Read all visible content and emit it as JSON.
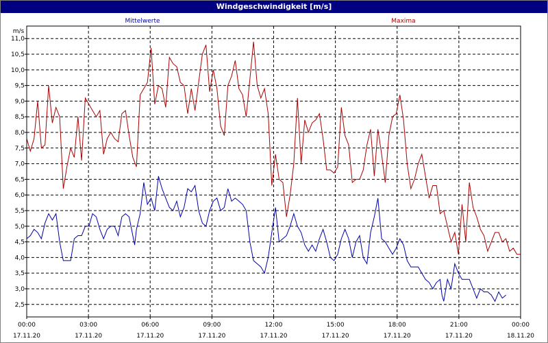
{
  "window": {
    "title": "Windgeschwindigkeit [m/s]"
  },
  "chart_data": {
    "type": "line",
    "title": "Windgeschwindigkeit [m/s]",
    "ylabel": "m/s",
    "ylim": [
      2.1,
      11.4
    ],
    "yticks": [
      "2,5",
      "3,0",
      "3,5",
      "4,0",
      "4,5",
      "5,0",
      "5,5",
      "6,0",
      "6,5",
      "7,0",
      "7,5",
      "8,0",
      "8,5",
      "9,0",
      "9,5",
      "10,0",
      "10,5",
      "11,0"
    ],
    "xticks": [
      {
        "time": "00:00",
        "date": "17.11.20"
      },
      {
        "time": "03:00",
        "date": "17.11.20"
      },
      {
        "time": "06:00",
        "date": "17.11.20"
      },
      {
        "time": "09:00",
        "date": "17.11.20"
      },
      {
        "time": "12:00",
        "date": "17.11.20"
      },
      {
        "time": "15:00",
        "date": "17.11.20"
      },
      {
        "time": "18:00",
        "date": "17.11.20"
      },
      {
        "time": "21:00",
        "date": "17.11.20"
      },
      {
        "time": "00:00",
        "date": "18.11.20"
      }
    ],
    "x_unit": "hours since 17.11.20 00:00",
    "grid": true,
    "series": [
      {
        "name": "Mittelwerte",
        "color": "#0000aa",
        "points": [
          [
            0,
            4.6
          ],
          [
            0.2,
            4.7
          ],
          [
            0.4,
            4.9
          ],
          [
            0.6,
            4.8
          ],
          [
            0.8,
            4.6
          ],
          [
            1.0,
            5.1
          ],
          [
            1.2,
            5.4
          ],
          [
            1.4,
            5.2
          ],
          [
            1.6,
            5.4
          ],
          [
            1.8,
            4.5
          ],
          [
            1.9,
            4.2
          ],
          [
            2.0,
            3.9
          ],
          [
            2.2,
            3.9
          ],
          [
            2.4,
            3.9
          ],
          [
            2.6,
            4.6
          ],
          [
            2.8,
            4.7
          ],
          [
            3.0,
            4.7
          ],
          [
            3.2,
            5.0
          ],
          [
            3.4,
            5.0
          ],
          [
            3.6,
            5.4
          ],
          [
            3.8,
            5.3
          ],
          [
            4.0,
            4.9
          ],
          [
            4.2,
            4.6
          ],
          [
            4.4,
            4.9
          ],
          [
            4.6,
            5.0
          ],
          [
            4.8,
            5.0
          ],
          [
            5.0,
            4.7
          ],
          [
            5.2,
            5.3
          ],
          [
            5.4,
            5.4
          ],
          [
            5.6,
            5.3
          ],
          [
            5.8,
            4.7
          ],
          [
            5.9,
            4.4
          ],
          [
            6.0,
            4.9
          ],
          [
            6.2,
            5.4
          ],
          [
            6.4,
            6.4
          ],
          [
            6.6,
            5.7
          ],
          [
            6.8,
            5.9
          ],
          [
            7.0,
            5.5
          ],
          [
            7.2,
            6.6
          ],
          [
            7.4,
            6.2
          ],
          [
            7.6,
            5.9
          ],
          [
            7.8,
            5.6
          ],
          [
            8.0,
            5.5
          ],
          [
            8.2,
            5.8
          ],
          [
            8.4,
            5.3
          ],
          [
            8.6,
            5.6
          ],
          [
            8.8,
            6.2
          ],
          [
            9.0,
            6.1
          ],
          [
            9.2,
            6.3
          ],
          [
            9.4,
            5.5
          ],
          [
            9.6,
            5.1
          ],
          [
            9.8,
            5.0
          ],
          [
            10.0,
            5.5
          ],
          [
            10.2,
            5.8
          ],
          [
            10.4,
            5.9
          ],
          [
            10.6,
            5.5
          ],
          [
            10.8,
            5.6
          ],
          [
            11.0,
            6.2
          ],
          [
            11.2,
            5.8
          ],
          [
            11.4,
            5.9
          ],
          [
            11.6,
            5.8
          ],
          [
            11.8,
            5.7
          ],
          [
            12.0,
            5.5
          ],
          [
            12.2,
            4.5
          ],
          [
            12.4,
            3.9
          ],
          [
            12.6,
            3.8
          ],
          [
            12.8,
            3.7
          ],
          [
            13.0,
            3.5
          ],
          [
            13.2,
            4.0
          ],
          [
            13.4,
            4.8
          ],
          [
            13.6,
            5.6
          ],
          [
            13.8,
            4.5
          ],
          [
            14.0,
            4.6
          ],
          [
            14.2,
            4.7
          ],
          [
            14.4,
            5.0
          ],
          [
            14.6,
            5.4
          ],
          [
            14.8,
            5.0
          ],
          [
            15.0,
            4.8
          ],
          [
            15.2,
            4.4
          ],
          [
            15.4,
            4.2
          ],
          [
            15.6,
            4.4
          ],
          [
            15.8,
            4.2
          ],
          [
            16.0,
            4.6
          ],
          [
            16.2,
            4.9
          ],
          [
            16.4,
            4.5
          ],
          [
            16.6,
            4.0
          ],
          [
            16.8,
            3.9
          ],
          [
            17.0,
            4.1
          ],
          [
            17.2,
            4.6
          ],
          [
            17.4,
            4.9
          ],
          [
            17.6,
            4.6
          ],
          [
            17.8,
            4.0
          ],
          [
            18.0,
            4.5
          ],
          [
            18.2,
            4.7
          ],
          [
            18.4,
            4.0
          ],
          [
            18.6,
            3.8
          ],
          [
            18.8,
            4.8
          ],
          [
            19.0,
            5.3
          ],
          [
            19.2,
            5.9
          ],
          [
            19.4,
            4.6
          ],
          [
            19.6,
            4.5
          ],
          [
            19.8,
            4.3
          ],
          [
            20.0,
            4.1
          ],
          [
            20.2,
            4.3
          ],
          [
            20.4,
            4.6
          ],
          [
            20.6,
            4.4
          ],
          [
            20.8,
            3.9
          ],
          [
            21.0,
            3.7
          ],
          [
            21.2,
            3.7
          ],
          [
            21.4,
            3.7
          ],
          [
            21.6,
            3.5
          ],
          [
            21.8,
            3.3
          ],
          [
            22.0,
            3.2
          ],
          [
            22.2,
            3.0
          ],
          [
            22.4,
            3.2
          ],
          [
            22.6,
            3.3
          ],
          [
            22.7,
            2.8
          ],
          [
            22.8,
            2.6
          ],
          [
            23.0,
            3.3
          ],
          [
            23.2,
            3.0
          ],
          [
            23.4,
            3.8
          ],
          [
            23.6,
            3.5
          ],
          [
            23.8,
            3.3
          ],
          [
            24.0,
            3.3
          ],
          [
            24.2,
            3.3
          ],
          [
            24.4,
            3.0
          ],
          [
            24.6,
            2.7
          ],
          [
            24.8,
            3.0
          ],
          [
            25.0,
            2.9
          ],
          [
            25.2,
            2.9
          ],
          [
            25.4,
            2.8
          ],
          [
            25.6,
            2.6
          ],
          [
            25.8,
            2.9
          ],
          [
            26.0,
            2.7
          ],
          [
            26.2,
            2.8
          ]
        ]
      },
      {
        "name": "Maxima",
        "color": "#aa0000",
        "points": [
          [
            0,
            7.8
          ],
          [
            0.2,
            7.4
          ],
          [
            0.4,
            7.8
          ],
          [
            0.6,
            9.0
          ],
          [
            0.8,
            7.5
          ],
          [
            1.0,
            7.6
          ],
          [
            1.2,
            9.5
          ],
          [
            1.4,
            8.3
          ],
          [
            1.6,
            8.8
          ],
          [
            1.8,
            8.5
          ],
          [
            2.0,
            6.2
          ],
          [
            2.2,
            6.9
          ],
          [
            2.4,
            7.5
          ],
          [
            2.6,
            7.2
          ],
          [
            2.8,
            8.5
          ],
          [
            3.0,
            7.1
          ],
          [
            3.2,
            9.1
          ],
          [
            3.4,
            8.9
          ],
          [
            3.6,
            8.7
          ],
          [
            3.8,
            8.5
          ],
          [
            4.0,
            8.7
          ],
          [
            4.2,
            7.3
          ],
          [
            4.4,
            7.8
          ],
          [
            4.6,
            8.0
          ],
          [
            4.8,
            7.8
          ],
          [
            5.0,
            7.7
          ],
          [
            5.2,
            8.6
          ],
          [
            5.4,
            8.7
          ],
          [
            5.6,
            7.9
          ],
          [
            5.8,
            7.2
          ],
          [
            6.0,
            6.9
          ],
          [
            6.2,
            9.2
          ],
          [
            6.4,
            9.4
          ],
          [
            6.6,
            9.6
          ],
          [
            6.8,
            10.7
          ],
          [
            7.0,
            8.9
          ],
          [
            7.2,
            9.5
          ],
          [
            7.4,
            9.4
          ],
          [
            7.6,
            8.8
          ],
          [
            7.8,
            10.4
          ],
          [
            8.0,
            10.2
          ],
          [
            8.2,
            10.1
          ],
          [
            8.4,
            9.6
          ],
          [
            8.6,
            9.5
          ],
          [
            8.8,
            8.6
          ],
          [
            9.0,
            9.4
          ],
          [
            9.2,
            8.7
          ],
          [
            9.4,
            9.6
          ],
          [
            9.6,
            10.5
          ],
          [
            9.8,
            10.8
          ],
          [
            10.0,
            9.3
          ],
          [
            10.2,
            10.0
          ],
          [
            10.4,
            9.4
          ],
          [
            10.6,
            8.2
          ],
          [
            10.8,
            7.9
          ],
          [
            11.0,
            9.5
          ],
          [
            11.2,
            9.8
          ],
          [
            11.4,
            10.3
          ],
          [
            11.6,
            9.4
          ],
          [
            11.8,
            9.2
          ],
          [
            12.0,
            8.5
          ],
          [
            12.2,
            9.7
          ],
          [
            12.4,
            10.9
          ],
          [
            12.6,
            9.5
          ],
          [
            12.8,
            9.1
          ],
          [
            13.0,
            9.4
          ],
          [
            13.2,
            8.6
          ],
          [
            13.4,
            6.3
          ],
          [
            13.6,
            7.3
          ],
          [
            13.8,
            6.5
          ],
          [
            14.0,
            6.4
          ],
          [
            14.2,
            5.3
          ],
          [
            14.4,
            6.0
          ],
          [
            14.6,
            7.0
          ],
          [
            14.8,
            9.1
          ],
          [
            15.0,
            7.0
          ],
          [
            15.2,
            8.4
          ],
          [
            15.4,
            8.0
          ],
          [
            15.6,
            8.3
          ],
          [
            15.8,
            8.4
          ],
          [
            16.0,
            8.6
          ],
          [
            16.2,
            7.8
          ],
          [
            16.4,
            6.8
          ],
          [
            16.6,
            6.8
          ],
          [
            16.8,
            6.7
          ],
          [
            17.0,
            6.9
          ],
          [
            17.2,
            8.8
          ],
          [
            17.4,
            7.9
          ],
          [
            17.6,
            7.6
          ],
          [
            17.8,
            6.4
          ],
          [
            18.0,
            6.5
          ],
          [
            18.2,
            6.5
          ],
          [
            18.4,
            6.8
          ],
          [
            18.6,
            7.6
          ],
          [
            18.8,
            8.1
          ],
          [
            19.0,
            6.6
          ],
          [
            19.2,
            8.1
          ],
          [
            19.4,
            7.3
          ],
          [
            19.6,
            6.4
          ],
          [
            19.8,
            7.9
          ],
          [
            20.0,
            8.5
          ],
          [
            20.2,
            8.6
          ],
          [
            20.4,
            9.2
          ],
          [
            20.6,
            8.4
          ],
          [
            20.8,
            7.0
          ],
          [
            21.0,
            6.2
          ],
          [
            21.2,
            6.5
          ],
          [
            21.4,
            7.0
          ],
          [
            21.6,
            7.3
          ],
          [
            21.8,
            6.6
          ],
          [
            22.0,
            5.9
          ],
          [
            22.2,
            6.3
          ],
          [
            22.4,
            6.3
          ],
          [
            22.6,
            5.4
          ],
          [
            22.8,
            5.5
          ],
          [
            23.0,
            5.0
          ],
          [
            23.2,
            4.5
          ],
          [
            23.4,
            4.8
          ],
          [
            23.6,
            4.1
          ],
          [
            23.8,
            5.7
          ],
          [
            24.0,
            4.5
          ],
          [
            24.2,
            6.4
          ],
          [
            24.4,
            5.6
          ],
          [
            24.6,
            5.3
          ],
          [
            24.8,
            4.9
          ],
          [
            25.0,
            4.7
          ],
          [
            25.2,
            4.2
          ],
          [
            25.4,
            4.5
          ],
          [
            25.6,
            4.8
          ],
          [
            25.8,
            4.8
          ],
          [
            26.0,
            4.5
          ],
          [
            26.2,
            4.6
          ],
          [
            26.4,
            4.2
          ],
          [
            26.6,
            4.3
          ],
          [
            26.8,
            4.1
          ],
          [
            27.0,
            4.1
          ]
        ]
      }
    ]
  }
}
